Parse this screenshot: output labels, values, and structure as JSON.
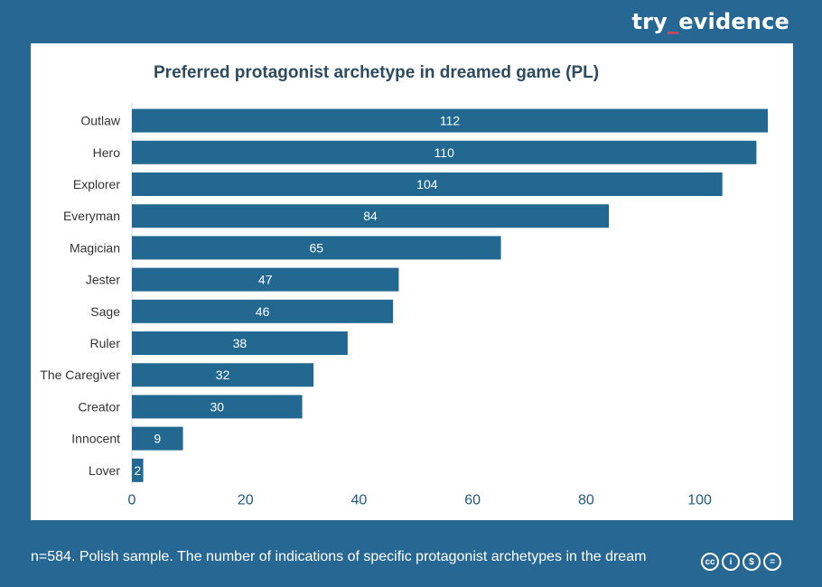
{
  "brand": {
    "prefix": "try",
    "separator": "_",
    "suffix": "evidence"
  },
  "chart_data": {
    "type": "bar",
    "orientation": "horizontal",
    "title": "Preferred protagonist archetype in dreamed game (PL)",
    "xlabel": "",
    "ylabel": "",
    "categories": [
      "Outlaw",
      "Hero",
      "Explorer",
      "Everyman",
      "Magician",
      "Jester",
      "Sage",
      "Ruler",
      "The Caregiver",
      "Creator",
      "Innocent",
      "Lover"
    ],
    "values": [
      112,
      110,
      104,
      84,
      65,
      47,
      46,
      38,
      32,
      30,
      9,
      2
    ],
    "xlim": [
      0,
      112
    ],
    "xticks": [
      0,
      20,
      40,
      60,
      80,
      100
    ],
    "grid": false,
    "bar_color": "#226891",
    "label_color": "#ffffff"
  },
  "footnote": "n=584. Polish sample. The number of indications of specific protagonist archetypes in the dream",
  "license_icons": [
    {
      "name": "cc-icon",
      "glyph": "cc"
    },
    {
      "name": "by-icon",
      "glyph": "i"
    },
    {
      "name": "nc-icon",
      "glyph": "$"
    },
    {
      "name": "nd-icon",
      "glyph": "="
    }
  ]
}
